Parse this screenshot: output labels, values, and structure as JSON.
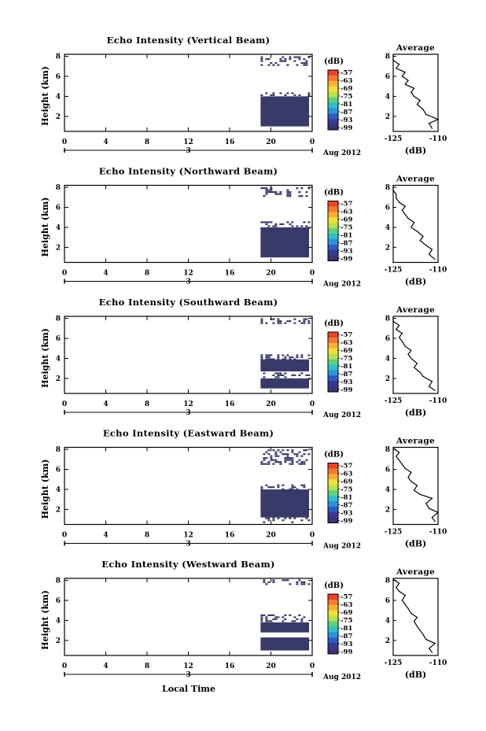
{
  "figure": {
    "date_label": "Aug 2012",
    "day_label": "3",
    "xlabel_bottom": "Local Time",
    "ylabel": "Height (km)",
    "colorbar_unit": "(dB)",
    "colorbar_ticks": [
      "-57",
      "-63",
      "-69",
      "-75",
      "-81",
      "-87",
      "-93",
      "-99"
    ],
    "colorbar_colors": [
      "#e8432a",
      "#f47a30",
      "#f9b032",
      "#f4df38",
      "#b8e24a",
      "#5fd07f",
      "#2ec0c8",
      "#2c93d8",
      "#2d5bc4",
      "#363a92",
      "#3a3370"
    ],
    "heatmap_color": "#383a6a",
    "avg_title": "Average",
    "avg_xlabel": "(dB)"
  },
  "chart_data": [
    {
      "type": "heatmap",
      "title": "Echo Intensity (Vertical Beam)",
      "xlabel": "Local Time",
      "ylabel": "Height (km)",
      "xticks": [
        "0",
        "4",
        "8",
        "12",
        "16",
        "20",
        "0"
      ],
      "xlim": [
        0,
        24
      ],
      "yticks": [
        "2",
        "4",
        "6",
        "8"
      ],
      "ylim": [
        0.5,
        8.2
      ],
      "data_start_hour": 19,
      "filled_bands": [
        [
          1.0,
          4.0
        ]
      ],
      "sparse_bands": [
        [
          4.0,
          4.4
        ],
        [
          7.2,
          8.0
        ]
      ],
      "avg": {
        "title": "Average",
        "xlabel": "(dB)",
        "xlim": [
          -125,
          -110
        ],
        "xticks": [
          "-125",
          "-110"
        ],
        "yticks": [
          "2",
          "4",
          "6",
          "8"
        ],
        "ylim": [
          0.5,
          8.2
        ],
        "x": [
          -112,
          -113,
          -110,
          -114,
          -115,
          -117,
          -116,
          -118,
          -119,
          -118,
          -121,
          -120,
          -122,
          -121,
          -124,
          -123,
          -125,
          -125
        ],
        "y": [
          0.8,
          1.3,
          1.7,
          2.2,
          2.7,
          3.2,
          3.6,
          4.0,
          4.4,
          4.8,
          5.2,
          5.6,
          6.0,
          6.4,
          6.8,
          7.2,
          7.6,
          8.1
        ]
      }
    },
    {
      "type": "heatmap",
      "title": "Echo Intensity (Northward Beam)",
      "xlabel": "Local Time",
      "ylabel": "Height (km)",
      "xticks": [
        "0",
        "4",
        "8",
        "12",
        "16",
        "20",
        "0"
      ],
      "xlim": [
        0,
        24
      ],
      "yticks": [
        "2",
        "4",
        "6",
        "8"
      ],
      "ylim": [
        0.5,
        8.2
      ],
      "data_start_hour": 19,
      "filled_bands": [
        [
          1.0,
          4.0
        ]
      ],
      "sparse_bands": [
        [
          4.0,
          4.6
        ],
        [
          7.2,
          8.0
        ]
      ],
      "avg": {
        "title": "Average",
        "xlabel": "(dB)",
        "xlim": [
          -125,
          -110
        ],
        "xticks": [
          "-125",
          "-110"
        ],
        "yticks": [
          "2",
          "4",
          "6",
          "8"
        ],
        "ylim": [
          0.5,
          8.2
        ],
        "x": [
          -111,
          -113,
          -112,
          -114,
          -116,
          -115,
          -117,
          -119,
          -118,
          -120,
          -121,
          -122,
          -121,
          -123,
          -124,
          -124,
          -125,
          -125
        ],
        "y": [
          0.8,
          1.3,
          1.8,
          2.2,
          2.7,
          3.1,
          3.6,
          4.0,
          4.5,
          4.9,
          5.3,
          5.7,
          6.1,
          6.5,
          6.9,
          7.3,
          7.7,
          8.1
        ]
      }
    },
    {
      "type": "heatmap",
      "title": "Echo Intensity (Southward Beam)",
      "xlabel": "Local Time",
      "ylabel": "Height (km)",
      "xticks": [
        "0",
        "4",
        "8",
        "12",
        "16",
        "20",
        "0"
      ],
      "xlim": [
        0,
        24
      ],
      "yticks": [
        "2",
        "4",
        "6",
        "8"
      ],
      "ylim": [
        0.5,
        8.2
      ],
      "data_start_hour": 19,
      "filled_bands": [
        [
          1.0,
          2.0
        ],
        [
          2.7,
          3.9
        ]
      ],
      "sparse_bands": [
        [
          3.9,
          4.4
        ],
        [
          2.0,
          2.6
        ],
        [
          7.6,
          8.0
        ]
      ],
      "avg": {
        "title": "Average",
        "xlabel": "(dB)",
        "xlim": [
          -125,
          -110
        ],
        "xticks": [
          "-125",
          "-110"
        ],
        "yticks": [
          "2",
          "4",
          "6",
          "8"
        ],
        "ylim": [
          0.5,
          8.2
        ],
        "x": [
          -111,
          -113,
          -112,
          -115,
          -116,
          -118,
          -117,
          -119,
          -120,
          -119,
          -121,
          -122,
          -123,
          -122,
          -124,
          -123,
          -125,
          -125
        ],
        "y": [
          0.8,
          1.2,
          1.7,
          2.2,
          2.6,
          3.1,
          3.5,
          4.0,
          4.4,
          4.8,
          5.2,
          5.7,
          6.1,
          6.5,
          6.9,
          7.3,
          7.7,
          8.1
        ]
      }
    },
    {
      "type": "heatmap",
      "title": "Echo Intensity (Eastward Beam)",
      "xlabel": "Local Time",
      "ylabel": "Height (km)",
      "xticks": [
        "0",
        "4",
        "8",
        "12",
        "16",
        "20",
        "0"
      ],
      "xlim": [
        0,
        24
      ],
      "yticks": [
        "2",
        "4",
        "6",
        "8"
      ],
      "ylim": [
        0.5,
        8.2
      ],
      "data_start_hour": 19,
      "filled_bands": [
        [
          1.2,
          4.0
        ]
      ],
      "sparse_bands": [
        [
          0.8,
          1.2
        ],
        [
          4.0,
          4.5
        ],
        [
          6.6,
          8.0
        ]
      ],
      "avg": {
        "title": "Average",
        "xlabel": "(dB)",
        "xlim": [
          -125,
          -110
        ],
        "xticks": [
          "-125",
          "-110"
        ],
        "yticks": [
          "2",
          "4",
          "6",
          "8"
        ],
        "ylim": [
          0.5,
          8.2
        ],
        "x": [
          -111,
          -112,
          -110,
          -113,
          -114,
          -112,
          -116,
          -118,
          -117,
          -119,
          -120,
          -119,
          -121,
          -122,
          -123,
          -124,
          -123,
          -125
        ],
        "y": [
          0.8,
          1.2,
          1.7,
          2.1,
          2.6,
          3.1,
          3.5,
          3.9,
          4.4,
          4.8,
          5.2,
          5.7,
          6.1,
          6.5,
          6.9,
          7.3,
          7.7,
          8.1
        ]
      }
    },
    {
      "type": "heatmap",
      "title": "Echo Intensity (Westward Beam)",
      "xlabel": "Local Time",
      "ylabel": "Height (km)",
      "xticks": [
        "0",
        "4",
        "8",
        "12",
        "16",
        "20",
        "0"
      ],
      "xlim": [
        0,
        24
      ],
      "yticks": [
        "2",
        "4",
        "6",
        "8"
      ],
      "ylim": [
        0.5,
        8.2
      ],
      "data_start_hour": 19,
      "filled_bands": [
        [
          1.0,
          2.3
        ],
        [
          2.8,
          3.8
        ]
      ],
      "sparse_bands": [
        [
          3.8,
          4.6
        ],
        [
          7.6,
          8.1
        ]
      ],
      "avg": {
        "title": "Average",
        "xlabel": "(dB)",
        "xlim": [
          -125,
          -110
        ],
        "xticks": [
          "-125",
          "-110"
        ],
        "yticks": [
          "2",
          "4",
          "6",
          "8"
        ],
        "ylim": [
          0.5,
          8.2
        ],
        "x": [
          -112,
          -113,
          -111,
          -114,
          -115,
          -116,
          -117,
          -118,
          -117,
          -119,
          -120,
          -121,
          -122,
          -121,
          -123,
          -124,
          -123,
          -125
        ],
        "y": [
          0.8,
          1.2,
          1.7,
          2.1,
          2.6,
          3.0,
          3.4,
          3.9,
          4.3,
          4.7,
          5.2,
          5.6,
          6.0,
          6.5,
          6.9,
          7.3,
          7.7,
          8.1
        ]
      }
    }
  ]
}
